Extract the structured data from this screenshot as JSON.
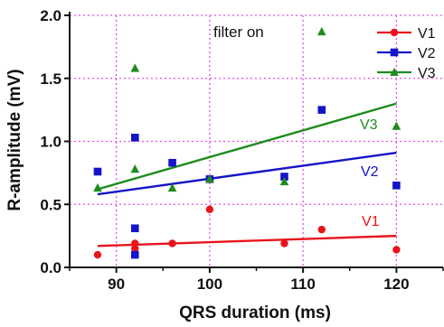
{
  "chart_data": {
    "type": "scatter",
    "title": "",
    "xlabel": "QRS duration (ms)",
    "ylabel": "R-amplitude (mV)",
    "xlim": [
      85,
      125
    ],
    "ylim": [
      0,
      2.0
    ],
    "x_ticks": [
      90,
      100,
      110,
      120
    ],
    "x_tick_labels": [
      "90",
      "100",
      "110",
      "120"
    ],
    "y_ticks": [
      0,
      0.5,
      1.0,
      1.5,
      2.0
    ],
    "y_tick_labels": [
      "0.0",
      "0.5",
      "1.0",
      "1.5",
      "2.0"
    ],
    "grid": true,
    "grid_style": "dotted magenta",
    "legend_position": "top-right",
    "annotation": "filter on",
    "series": [
      {
        "name": "V1",
        "color": "#e8141b",
        "marker": "circle",
        "points": [
          [
            88,
            0.1
          ],
          [
            92,
            0.1
          ],
          [
            92,
            0.15
          ],
          [
            92,
            0.19
          ],
          [
            96,
            0.19
          ],
          [
            100,
            0.46
          ],
          [
            108,
            0.19
          ],
          [
            112,
            0.3
          ],
          [
            120,
            0.14
          ]
        ],
        "fit": [
          [
            88,
            0.17
          ],
          [
            120,
            0.25
          ]
        ],
        "fit_label": "V1"
      },
      {
        "name": "V2",
        "color": "#1414c8",
        "marker": "square",
        "points": [
          [
            88,
            0.76
          ],
          [
            92,
            1.03
          ],
          [
            92,
            0.31
          ],
          [
            92,
            0.1
          ],
          [
            96,
            0.83
          ],
          [
            100,
            0.7
          ],
          [
            108,
            0.72
          ],
          [
            112,
            1.25
          ],
          [
            120,
            0.65
          ]
        ],
        "fit": [
          [
            88,
            0.58
          ],
          [
            120,
            0.91
          ]
        ],
        "fit_label": "V2"
      },
      {
        "name": "V3",
        "color": "#1e8c1e",
        "marker": "triangle",
        "points": [
          [
            88,
            0.63
          ],
          [
            92,
            1.58
          ],
          [
            92,
            0.78
          ],
          [
            96,
            0.63
          ],
          [
            100,
            0.7
          ],
          [
            108,
            0.68
          ],
          [
            112,
            1.87
          ],
          [
            120,
            1.12
          ]
        ],
        "fit": [
          [
            88,
            0.62
          ],
          [
            120,
            1.3
          ]
        ],
        "fit_label": "V3"
      }
    ]
  }
}
